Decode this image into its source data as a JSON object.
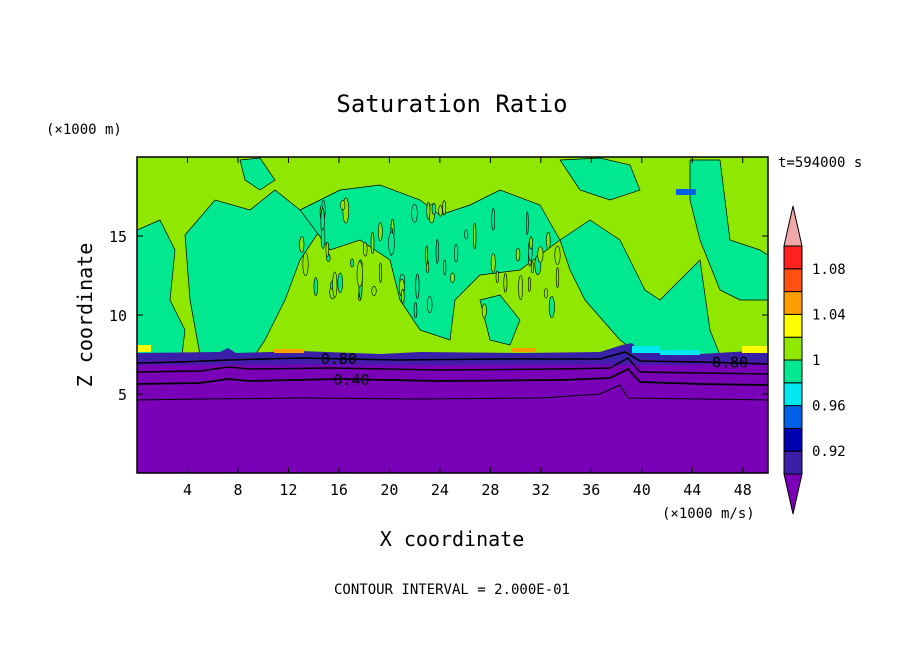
{
  "chart_data": {
    "type": "heatmap",
    "title": "Saturation Ratio",
    "xlabel": "X coordinate",
    "ylabel": "Z coordinate",
    "x_unit": "(×1000 m/s)",
    "y_unit": "(×1000 m)",
    "time_label": "t=594000 s",
    "footer": "CONTOUR INTERVAL = 2.000E-01",
    "xlim": [
      0,
      50
    ],
    "ylim": [
      0,
      20
    ],
    "x_ticks": [
      "4",
      "8",
      "12",
      "16",
      "20",
      "24",
      "28",
      "32",
      "36",
      "40",
      "44",
      "48"
    ],
    "x_tick_values": [
      4,
      8,
      12,
      16,
      20,
      24,
      28,
      32,
      36,
      40,
      44,
      48
    ],
    "y_ticks": [
      "5",
      "10",
      "15"
    ],
    "y_tick_values": [
      5,
      10,
      15
    ],
    "contour_labels": [
      {
        "text": "0.80",
        "x": 16,
        "y": 7.2
      },
      {
        "text": "0.40",
        "x": 17,
        "y": 5.9
      },
      {
        "text": "0.80",
        "x": 47,
        "y": 7.0
      }
    ],
    "colorbar": {
      "levels": [
        0.9,
        0.92,
        0.94,
        0.96,
        0.98,
        1.0,
        1.02,
        1.04,
        1.06,
        1.08,
        1.1
      ],
      "tick_labels": [
        "0.92",
        "0.96",
        "1",
        "1.04",
        "1.08"
      ],
      "tick_values": [
        0.92,
        0.96,
        1.0,
        1.04,
        1.08
      ],
      "colors": [
        "#7a00b8",
        "#3a20a8",
        "#0000b0",
        "#0060e8",
        "#00e8f0",
        "#00e890",
        "#90e800",
        "#ffff00",
        "#ffa000",
        "#ff5010",
        "#ff2020",
        "#f0a8a8"
      ]
    },
    "regions": {
      "below_cloud_base": "#7a00b8",
      "upper_layer_background": "#90e800",
      "upper_layer_patches": "#00e890"
    }
  }
}
